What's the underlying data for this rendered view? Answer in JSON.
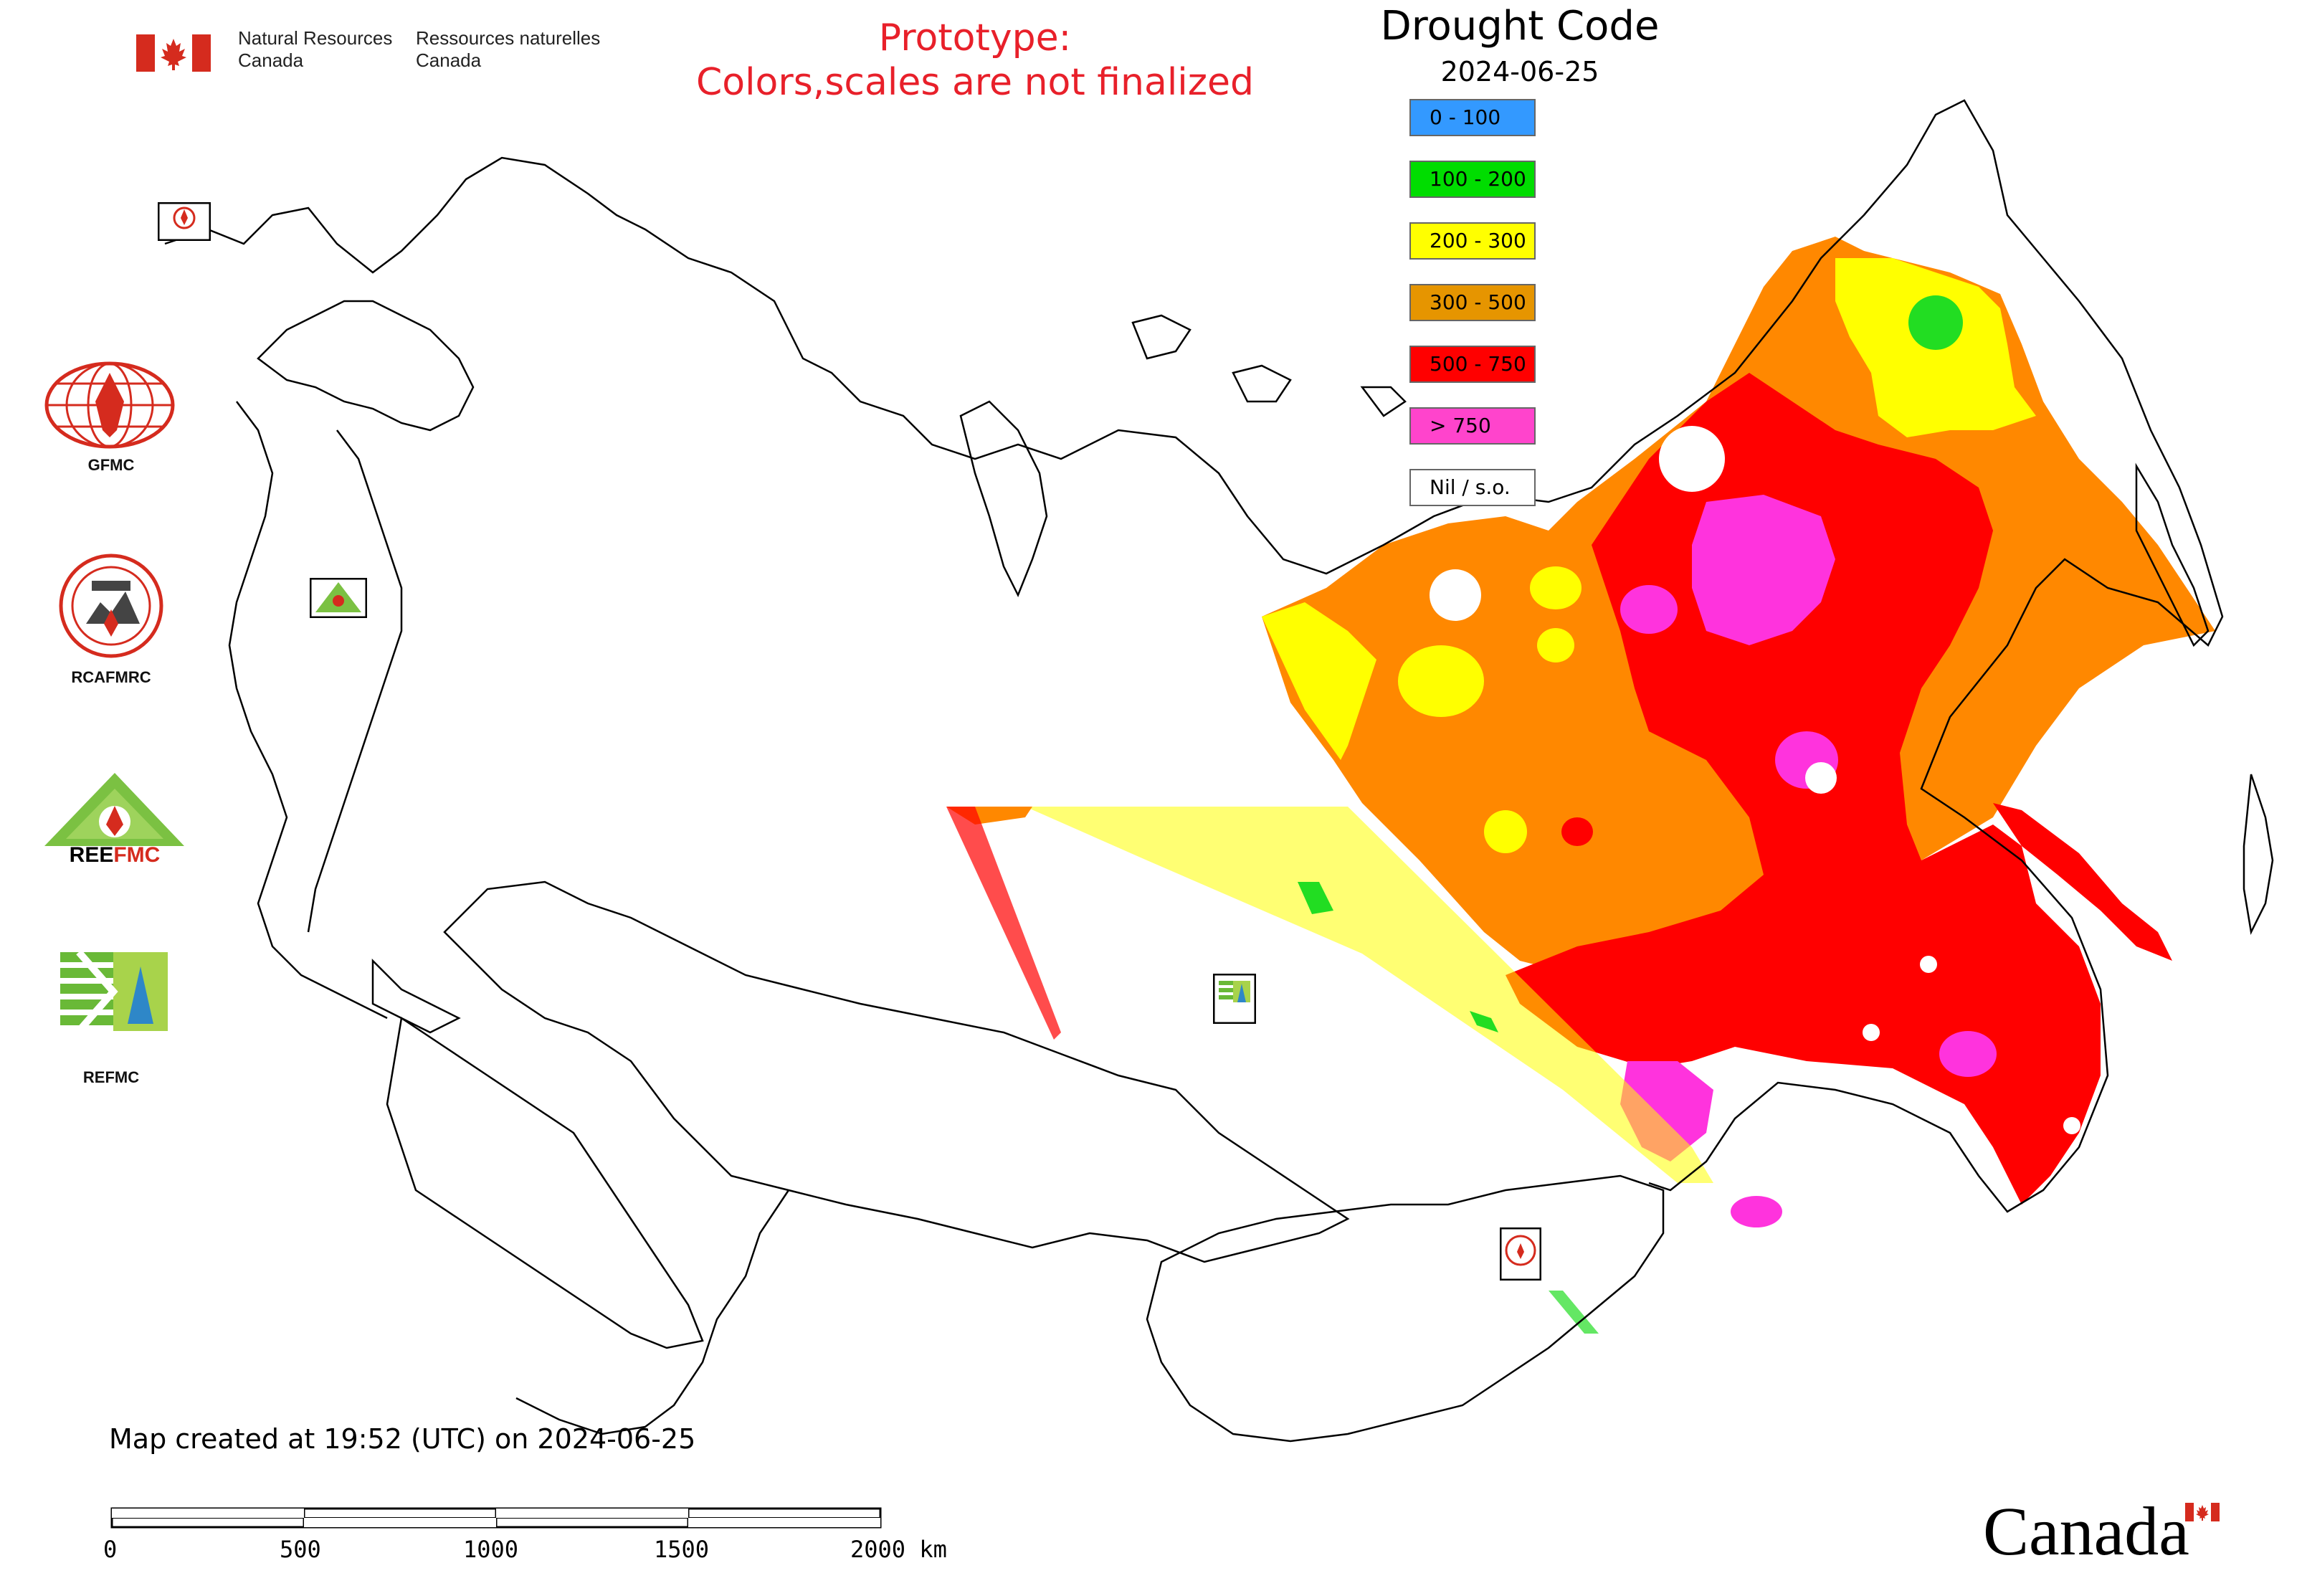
{
  "header": {
    "agency_en": "Natural Resources\nCanada",
    "agency_en_line1": "Natural Resources",
    "agency_en_line2": "Canada",
    "agency_fr_line1": "Ressources naturelles",
    "agency_fr_line2": "Canada",
    "prototype_line1": "Prototype:",
    "prototype_line2": "Colors,scales are not finalized"
  },
  "legend": {
    "title": "Drought Code",
    "date": "2024-06-25",
    "items": [
      {
        "label": "0 - 100",
        "color": "#3399ff"
      },
      {
        "label": "100 - 200",
        "color": "#00dd00"
      },
      {
        "label": "200 - 300",
        "color": "#ffff00"
      },
      {
        "label": "300 - 500",
        "color": "#e69500"
      },
      {
        "label": "500 - 750",
        "color": "#ff0000"
      },
      {
        "label": "> 750",
        "color": "#ff44cc"
      },
      {
        "label": "Nil / s.o.",
        "color": "#ffffff"
      }
    ]
  },
  "centers": {
    "gfmc": "GFMC",
    "rcafmrc": "RCAFMRC",
    "reefmc": "REEFMC",
    "refmc": "REFMC"
  },
  "footer": {
    "created": "Map created at 19:52 (UTC) on 2024-06-25",
    "scale_labels": [
      "0",
      "500",
      "1000",
      "1500",
      "2000 km"
    ],
    "wordmark": "Canada"
  },
  "colors": {
    "drought_orange": "#ff8800",
    "drought_red": "#ff0000",
    "drought_magenta": "#ff33dd",
    "drought_yellow": "#ffff00",
    "drought_green": "#22dd22",
    "title_red": "#e8202a"
  }
}
